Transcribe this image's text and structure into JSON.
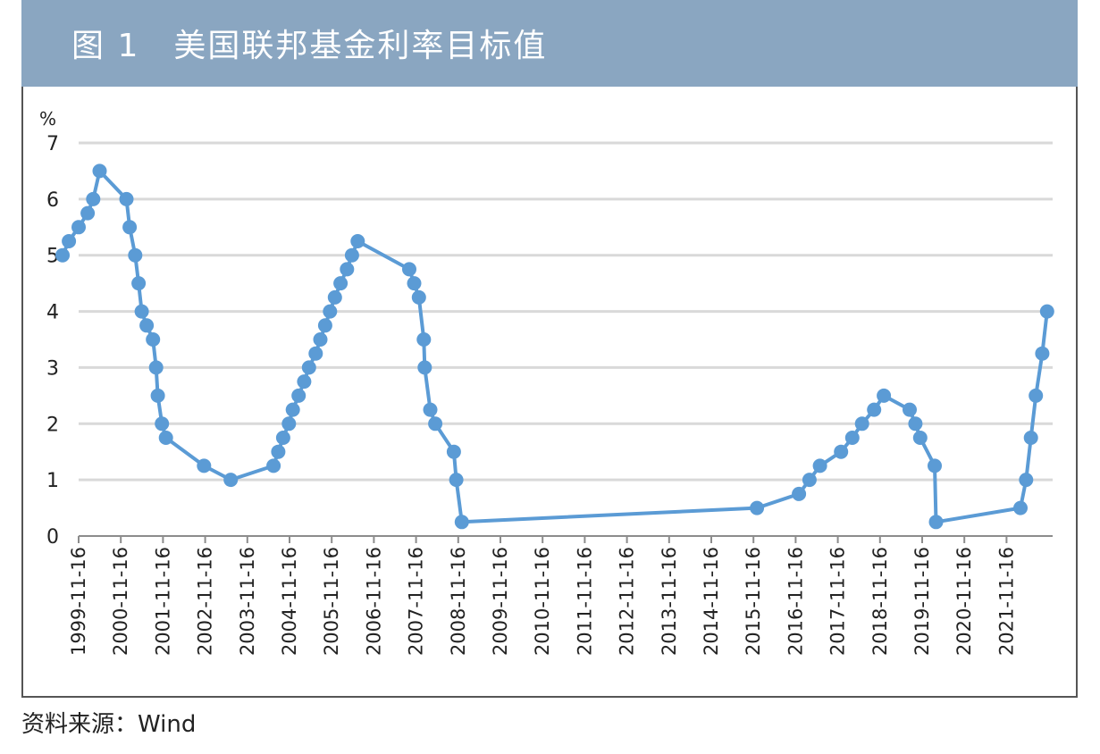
{
  "header": {
    "title": "图 1　美国联邦基金利率目标值"
  },
  "source_note": "资料来源：Wind",
  "colors": {
    "header_bg": "#8aa6c1",
    "line": "#5b9bd5",
    "grid": "#d9d9d9",
    "axis": "#8c8c8c"
  },
  "chart_data": {
    "type": "line",
    "title": "",
    "xlabel": "",
    "ylabel": "%",
    "ylim": [
      0,
      7
    ],
    "yticks": [
      0,
      1,
      2,
      3,
      4,
      5,
      6,
      7
    ],
    "grid": true,
    "legend": "none",
    "xtick_labels": [
      "1999-11-16",
      "2000-11-16",
      "2001-11-16",
      "2002-11-16",
      "2003-11-16",
      "2004-11-16",
      "2005-11-16",
      "2006-11-16",
      "2007-11-16",
      "2008-11-16",
      "2009-11-16",
      "2010-11-16",
      "2011-11-16",
      "2012-11-16",
      "2013-11-16",
      "2014-11-16",
      "2015-11-16",
      "2016-11-16",
      "2017-11-16",
      "2018-11-16",
      "2019-11-16",
      "2020-11-16",
      "2021-11-16"
    ],
    "series": [
      {
        "values": [
          [
            "1999-06-30",
            5.0
          ],
          [
            "1999-08-24",
            5.25
          ],
          [
            "1999-11-16",
            5.5
          ],
          [
            "2000-02-02",
            5.75
          ],
          [
            "2000-03-21",
            6.0
          ],
          [
            "2000-05-16",
            6.5
          ],
          [
            "2001-01-03",
            6.0
          ],
          [
            "2001-01-31",
            5.5
          ],
          [
            "2001-03-20",
            5.0
          ],
          [
            "2001-04-18",
            4.5
          ],
          [
            "2001-05-15",
            4.0
          ],
          [
            "2001-06-27",
            3.75
          ],
          [
            "2001-08-21",
            3.5
          ],
          [
            "2001-09-17",
            3.0
          ],
          [
            "2001-10-02",
            2.5
          ],
          [
            "2001-11-06",
            2.0
          ],
          [
            "2001-12-11",
            1.75
          ],
          [
            "2002-11-06",
            1.25
          ],
          [
            "2003-06-25",
            1.0
          ],
          [
            "2004-06-30",
            1.25
          ],
          [
            "2004-08-10",
            1.5
          ],
          [
            "2004-09-21",
            1.75
          ],
          [
            "2004-11-10",
            2.0
          ],
          [
            "2004-12-14",
            2.25
          ],
          [
            "2005-02-02",
            2.5
          ],
          [
            "2005-03-22",
            2.75
          ],
          [
            "2005-05-03",
            3.0
          ],
          [
            "2005-06-30",
            3.25
          ],
          [
            "2005-08-09",
            3.5
          ],
          [
            "2005-09-20",
            3.75
          ],
          [
            "2005-11-01",
            4.0
          ],
          [
            "2005-12-13",
            4.25
          ],
          [
            "2006-01-31",
            4.5
          ],
          [
            "2006-03-28",
            4.75
          ],
          [
            "2006-05-10",
            5.0
          ],
          [
            "2006-06-29",
            5.25
          ],
          [
            "2007-09-18",
            4.75
          ],
          [
            "2007-10-31",
            4.5
          ],
          [
            "2007-12-11",
            4.25
          ],
          [
            "2008-01-22",
            3.5
          ],
          [
            "2008-01-30",
            3.0
          ],
          [
            "2008-03-18",
            2.25
          ],
          [
            "2008-04-30",
            2.0
          ],
          [
            "2008-10-08",
            1.5
          ],
          [
            "2008-10-29",
            1.0
          ],
          [
            "2008-12-16",
            0.25
          ],
          [
            "2015-12-16",
            0.5
          ],
          [
            "2016-12-14",
            0.75
          ],
          [
            "2017-03-15",
            1.0
          ],
          [
            "2017-06-14",
            1.25
          ],
          [
            "2017-12-13",
            1.5
          ],
          [
            "2018-03-21",
            1.75
          ],
          [
            "2018-06-13",
            2.0
          ],
          [
            "2018-09-26",
            2.25
          ],
          [
            "2018-12-19",
            2.5
          ],
          [
            "2019-07-31",
            2.25
          ],
          [
            "2019-09-18",
            2.0
          ],
          [
            "2019-10-30",
            1.75
          ],
          [
            "2020-03-03",
            1.25
          ],
          [
            "2020-03-15",
            0.25
          ],
          [
            "2022-03-16",
            0.5
          ],
          [
            "2022-05-04",
            1.0
          ],
          [
            "2022-06-15",
            1.75
          ],
          [
            "2022-07-27",
            2.5
          ],
          [
            "2022-09-21",
            3.25
          ],
          [
            "2022-11-02",
            4.0
          ]
        ]
      }
    ]
  }
}
